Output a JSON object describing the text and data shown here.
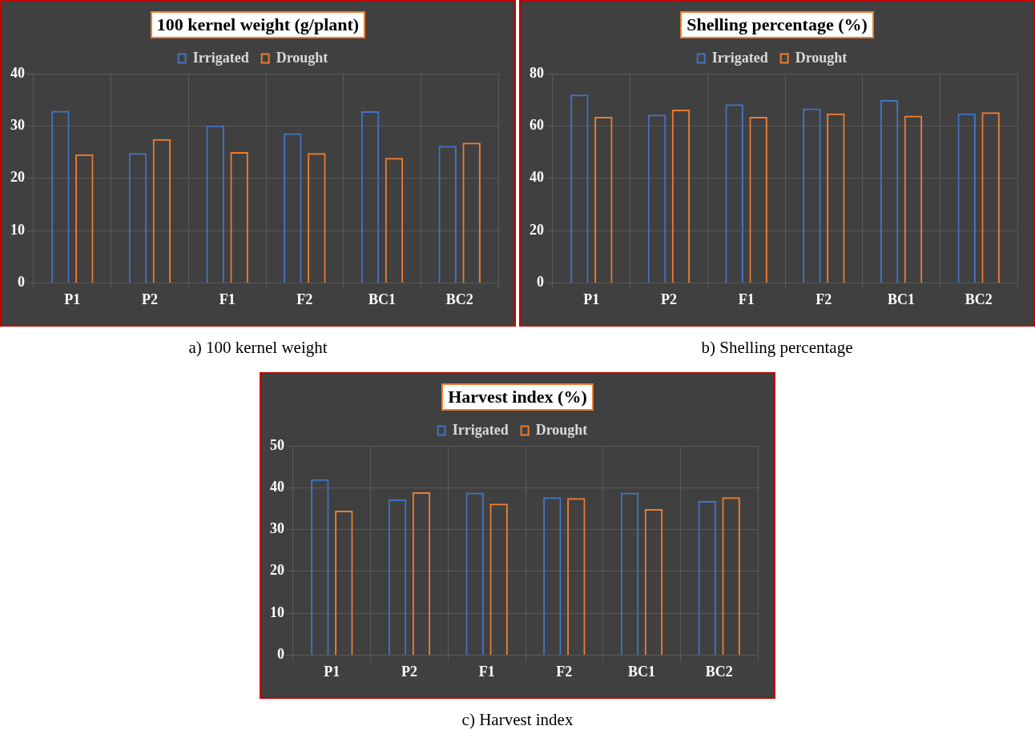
{
  "chart_data": [
    {
      "type": "bar",
      "title": "100 kernel weight (g/plant)",
      "categories": [
        "P1",
        "P2",
        "F1",
        "F2",
        "BC1",
        "BC2"
      ],
      "series": [
        {
          "name": "Irrigated",
          "color": "#4472c4",
          "values": [
            32.9,
            24.8,
            30.1,
            28.6,
            32.8,
            26.2
          ]
        },
        {
          "name": "Drought",
          "color": "#ed7d31",
          "values": [
            24.6,
            27.5,
            25.0,
            24.8,
            23.9,
            26.8
          ]
        }
      ],
      "ylim": [
        0,
        40
      ],
      "yticks": [
        0,
        10,
        20,
        30,
        40
      ],
      "grid": true,
      "legend": "top",
      "annotations": [
        "a) 100 kernel weight"
      ]
    },
    {
      "type": "bar",
      "title": "Shelling percentage (%)",
      "categories": [
        "P1",
        "P2",
        "F1",
        "F2",
        "BC1",
        "BC2"
      ],
      "series": [
        {
          "name": "Irrigated",
          "color": "#4472c4",
          "values": [
            72.0,
            64.3,
            68.3,
            66.7,
            69.9,
            64.8
          ]
        },
        {
          "name": "Drought",
          "color": "#ed7d31",
          "values": [
            63.5,
            66.2,
            63.5,
            64.8,
            63.9,
            65.2
          ]
        }
      ],
      "ylim": [
        0,
        80
      ],
      "yticks": [
        0,
        20,
        40,
        60,
        80
      ],
      "grid": true,
      "legend": "top",
      "annotations": [
        "b) Shelling percentage"
      ]
    },
    {
      "type": "bar",
      "title": "Harvest index (%)",
      "categories": [
        "P1",
        "P2",
        "F1",
        "F2",
        "BC1",
        "BC2"
      ],
      "series": [
        {
          "name": "Irrigated",
          "color": "#4472c4",
          "values": [
            42.0,
            37.2,
            38.8,
            37.7,
            38.8,
            36.8
          ]
        },
        {
          "name": "Drought",
          "color": "#ed7d31",
          "values": [
            34.5,
            38.9,
            36.2,
            37.5,
            34.9,
            37.7
          ]
        }
      ],
      "ylim": [
        0,
        50
      ],
      "yticks": [
        0,
        10,
        20,
        30,
        40,
        50
      ],
      "grid": true,
      "legend": "top",
      "annotations": [
        "c) Harvest index"
      ]
    }
  ]
}
